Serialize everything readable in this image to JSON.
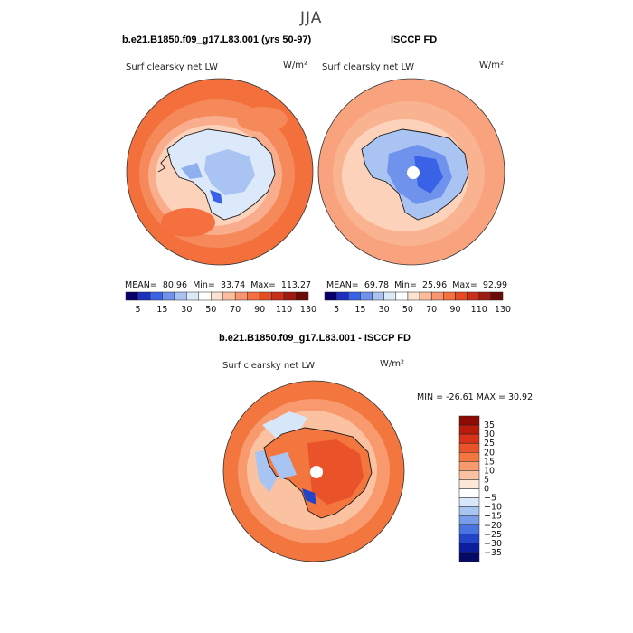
{
  "figure": {
    "season": "JJA",
    "panel_left_case": "b.e21.B1850.f09_g17.L83.001 (yrs 50-97)",
    "panel_right_case": "ISCCP FD",
    "panel_diff_case": "b.e21.B1850.f09_g17.L83.001 - ISCCP FD",
    "variable": "Surf clearsky net LW",
    "units": "W/m²"
  },
  "panels": {
    "left": {
      "mean_label": "MEAN=",
      "mean": "80.96",
      "min_label": "Min=",
      "min": "33.74",
      "max_label": "Max=",
      "max": "113.27"
    },
    "right": {
      "mean_label": "MEAN=",
      "mean": "69.78",
      "min_label": "Min=",
      "min": "25.96",
      "max_label": "Max=",
      "max": "92.99"
    },
    "diff": {
      "minmax_text": "MIN = -26.61 MAX =  30.92"
    }
  },
  "chart_data": [
    {
      "type": "heatmap",
      "title": "b.e21.B1850.f09_g17.L83.001 (yrs 50-97)",
      "subtitle": "Surf clearsky net LW",
      "units": "W/m²",
      "projection": "south polar stereographic",
      "mean": 80.96,
      "min": 33.74,
      "max": 113.27,
      "colorbar_levels": [
        5,
        15,
        30,
        50,
        70,
        90,
        110,
        130
      ],
      "colorbar_colors": [
        "#08006a",
        "#1d2fbf",
        "#3a62e6",
        "#6f93ec",
        "#a9c3f2",
        "#dce9fa",
        "#ffffff",
        "#fde2cf",
        "#fbbd9b",
        "#f89570",
        "#f4703f",
        "#e84b22",
        "#c9301a",
        "#9f1a10",
        "#6c0a05"
      ]
    },
    {
      "type": "heatmap",
      "title": "ISCCP FD",
      "subtitle": "Surf clearsky net LW",
      "units": "W/m²",
      "projection": "south polar stereographic",
      "mean": 69.78,
      "min": 25.96,
      "max": 92.99,
      "colorbar_levels": [
        5,
        15,
        30,
        50,
        70,
        90,
        110,
        130
      ]
    },
    {
      "type": "heatmap",
      "title": "b.e21.B1850.f09_g17.L83.001 - ISCCP FD",
      "subtitle": "Surf clearsky net LW",
      "units": "W/m²",
      "projection": "south polar stereographic",
      "min": -26.61,
      "max": 30.92,
      "colorbar_levels": [
        "35",
        "30",
        "25",
        "20",
        "15",
        "10",
        "5",
        "0",
        "−5",
        "−10",
        "−15",
        "−20",
        "−25",
        "−30",
        "−35"
      ],
      "colorbar_colors": [
        "#8e0b05",
        "#b81a0c",
        "#d8331a",
        "#ea5229",
        "#f4763f",
        "#f89a6d",
        "#fbc2a1",
        "#fde7d6",
        "#ffffff",
        "#d8e6fa",
        "#a8c4f2",
        "#789cea",
        "#4a73e2",
        "#2244c8",
        "#0b1c9c",
        "#060a66"
      ]
    }
  ],
  "colors": {
    "ocean_warm": "#f36f3c",
    "ocean_light": "#f8a27e",
    "ice_light": "#dce9fa",
    "ice_mid": "#a9c3f2",
    "ice_deep": "#3a62e6"
  }
}
